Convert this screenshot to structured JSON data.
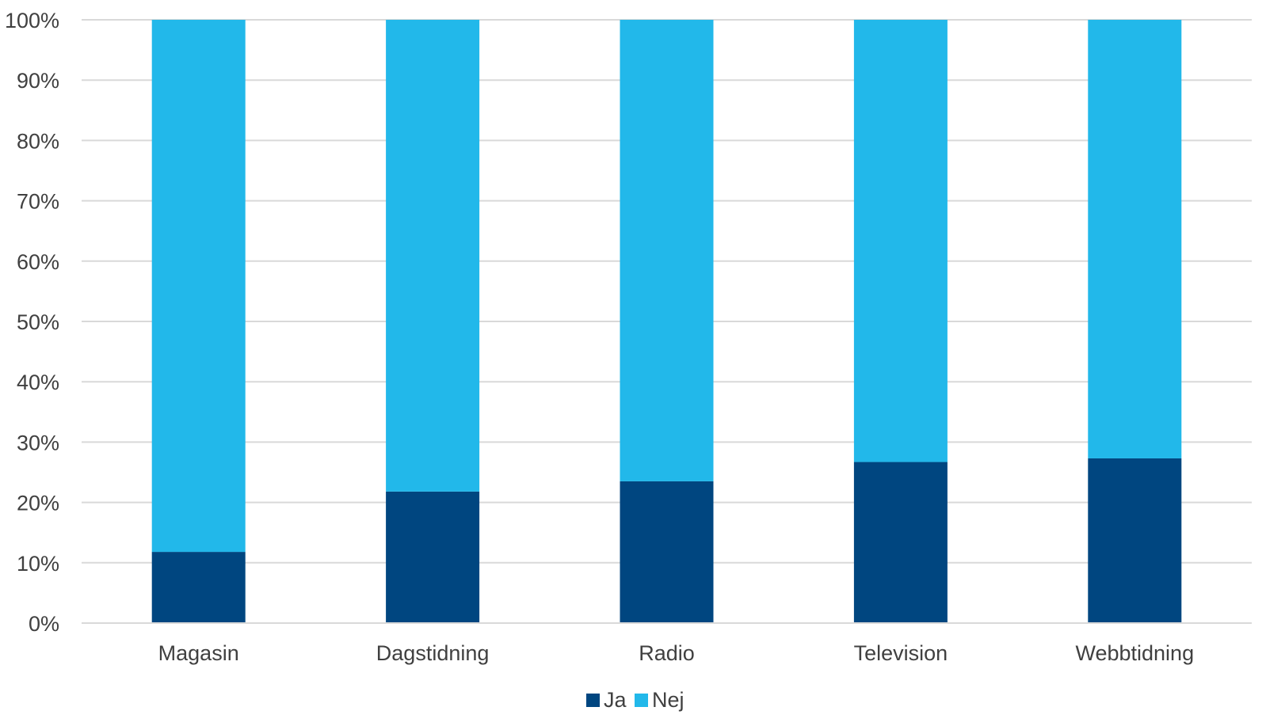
{
  "chart_data": {
    "type": "bar",
    "stacked": true,
    "percent_stacked": true,
    "categories": [
      "Magasin",
      "Dagstidning",
      "Radio",
      "Television",
      "Webbtidning"
    ],
    "series": [
      {
        "name": "Ja",
        "color": "#004680",
        "values": [
          11.8,
          21.8,
          23.5,
          26.7,
          27.3
        ]
      },
      {
        "name": "Nej",
        "color": "#22b8ea",
        "values": [
          88.2,
          78.2,
          76.5,
          73.3,
          72.7
        ]
      }
    ],
    "yticks": [
      "0%",
      "10%",
      "20%",
      "30%",
      "40%",
      "50%",
      "60%",
      "70%",
      "80%",
      "90%",
      "100%"
    ],
    "ylim": [
      0,
      100
    ],
    "title": "",
    "xlabel": "",
    "ylabel": "",
    "grid": true,
    "legend_position": "bottom"
  }
}
